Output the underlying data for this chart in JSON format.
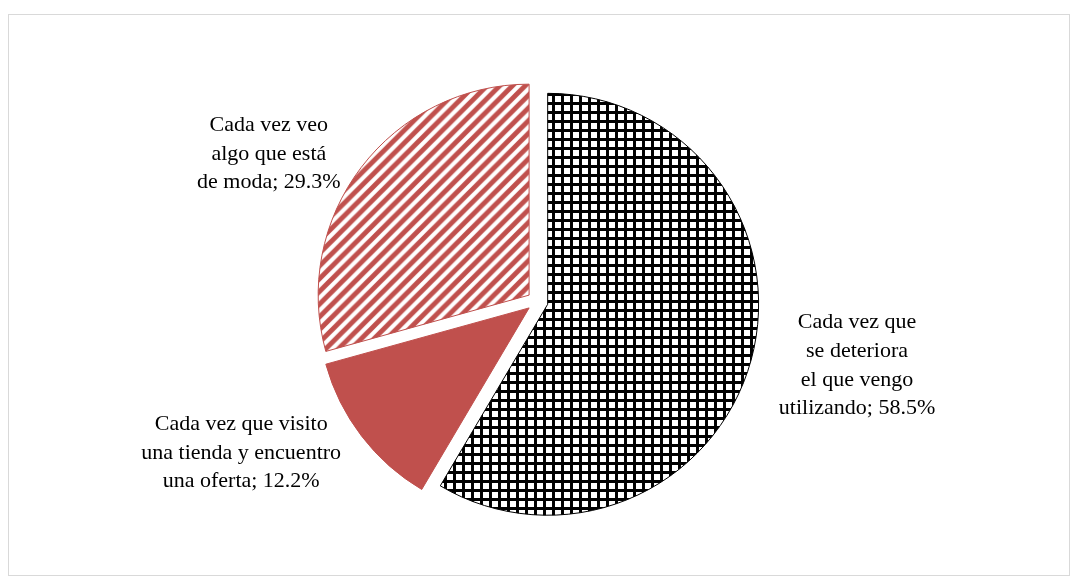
{
  "chart_data": {
    "type": "pie",
    "categories": [
      "Cada vez que se deteriora el que vengo utilizando",
      "Cada vez que visito una tienda y encuentro una oferta",
      "Cada vez veo algo que está de moda"
    ],
    "values": [
      58.5,
      12.2,
      29.3
    ],
    "value_labels": [
      "58.5%",
      "12.2%",
      "29.3%"
    ],
    "colors": [
      "#000000",
      "#c0504d",
      "#c0504d"
    ],
    "legend": false
  }
}
